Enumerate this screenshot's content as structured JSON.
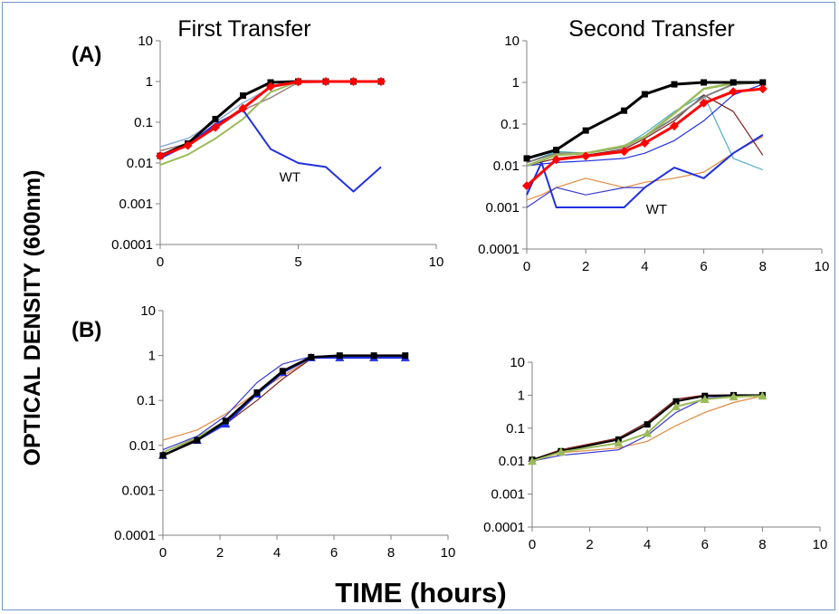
{
  "figure": {
    "y_axis_label": "OPTICAL DENSITY (600nm)",
    "x_axis_label": "TIME (hours)",
    "panel_labels": [
      "(A)",
      "(B)"
    ],
    "colors": {
      "frame_border": "#6f96c6"
    }
  },
  "chart_data": [
    {
      "id": "A-first",
      "type": "line",
      "title": "First Transfer",
      "xlabel": "",
      "ylabel": "",
      "xlim": [
        0,
        10
      ],
      "ylim": [
        0.0001,
        10
      ],
      "yscale": "log",
      "xticks": [
        "0",
        "5",
        "10"
      ],
      "yticks": [
        "0.0001",
        "0.001",
        "0.01",
        "0.1",
        "1",
        "10"
      ],
      "grid": false,
      "annotations": [
        {
          "text": "WT",
          "x": 4.7,
          "y": 0.0035
        }
      ],
      "series": [
        {
          "color": "#8fb0d8",
          "width": 1.5,
          "marker": "none",
          "x": [
            0,
            1,
            2,
            3,
            4,
            5,
            6,
            7,
            8
          ],
          "y": [
            0.025,
            0.04,
            0.1,
            0.3,
            0.7,
            1,
            1,
            1,
            1
          ]
        },
        {
          "color": "#9b8080",
          "width": 1.5,
          "marker": "none",
          "x": [
            0,
            1,
            2,
            3,
            4,
            5,
            6,
            7,
            8
          ],
          "y": [
            0.02,
            0.03,
            0.07,
            0.2,
            0.4,
            0.95,
            1,
            1,
            1
          ]
        },
        {
          "color": "#9bbb59",
          "width": 2,
          "marker": "none",
          "x": [
            0,
            1,
            2,
            3,
            4,
            5,
            6,
            7,
            8
          ],
          "y": [
            0.009,
            0.016,
            0.04,
            0.12,
            0.55,
            1,
            1,
            1,
            1
          ]
        },
        {
          "color": "#2030e0",
          "width": 2,
          "marker": "none",
          "x": [
            0,
            1,
            2,
            3,
            4,
            5,
            6,
            7,
            8
          ],
          "y": [
            0.013,
            0.028,
            0.09,
            0.2,
            0.022,
            0.01,
            0.008,
            0.002,
            0.008
          ]
        },
        {
          "color": "#000000",
          "width": 3,
          "marker": "square",
          "x": [
            0,
            1,
            2,
            3,
            4,
            5,
            6,
            7,
            8
          ],
          "y": [
            0.015,
            0.03,
            0.12,
            0.45,
            0.95,
            1,
            1,
            1,
            1
          ]
        },
        {
          "color": "#ff0000",
          "width": 3,
          "marker": "diamond",
          "x": [
            0,
            1,
            2,
            3,
            4,
            5,
            6,
            7,
            8
          ],
          "y": [
            0.015,
            0.027,
            0.075,
            0.22,
            0.75,
            0.98,
            1,
            1,
            1
          ]
        }
      ]
    },
    {
      "id": "A-second",
      "type": "line",
      "title": "Second Transfer",
      "xlabel": "",
      "ylabel": "",
      "xlim": [
        0,
        10
      ],
      "ylim": [
        0.0001,
        10
      ],
      "yscale": "log",
      "xticks": [
        "0",
        "2",
        "4",
        "6",
        "8",
        "10"
      ],
      "yticks": [
        "0.0001",
        "0.001",
        "0.01",
        "0.1",
        "1",
        "10"
      ],
      "grid": false,
      "annotations": [
        {
          "text": "WT",
          "x": 4.4,
          "y": 0.0007
        }
      ],
      "series": [
        {
          "color": "#e08a40",
          "width": 1.2,
          "marker": "none",
          "x": [
            0,
            0.5,
            1,
            2,
            3.3,
            4,
            5,
            6,
            7,
            8
          ],
          "y": [
            0.0015,
            0.002,
            0.003,
            0.005,
            0.003,
            0.004,
            0.005,
            0.007,
            0.02,
            0.05
          ]
        },
        {
          "color": "#3b3bd0",
          "width": 1.2,
          "marker": "none",
          "x": [
            0,
            1,
            2,
            3.3,
            4,
            5,
            6,
            7,
            8
          ],
          "y": [
            0.001,
            0.003,
            0.002,
            0.003,
            0.003,
            0.009,
            0.005,
            0.02,
            0.055
          ]
        },
        {
          "color": "#4bacc6",
          "width": 1.2,
          "marker": "none",
          "x": [
            0,
            1,
            2,
            3.3,
            4,
            5,
            6,
            7,
            8
          ],
          "y": [
            0.012,
            0.022,
            0.02,
            0.03,
            0.06,
            0.2,
            0.5,
            0.015,
            0.008
          ]
        },
        {
          "color": "#7f1f1f",
          "width": 1.2,
          "marker": "none",
          "x": [
            0,
            1,
            2,
            3.3,
            4,
            5,
            6,
            7,
            8
          ],
          "y": [
            0.01,
            0.015,
            0.018,
            0.025,
            0.045,
            0.12,
            0.5,
            0.2,
            0.018
          ]
        },
        {
          "color": "#2030e0",
          "width": 1.2,
          "marker": "none",
          "x": [
            0,
            1,
            2,
            3.3,
            4,
            5,
            6,
            7,
            8
          ],
          "y": [
            0.01,
            0.012,
            0.013,
            0.015,
            0.02,
            0.04,
            0.12,
            0.5,
            0.9
          ]
        },
        {
          "color": "#2030e0",
          "width": 2,
          "marker": "none",
          "x": [
            0,
            0.5,
            1,
            2,
            3.3,
            4,
            5,
            6,
            7,
            8
          ],
          "y": [
            0.002,
            0.012,
            0.001,
            0.001,
            0.001,
            0.003,
            0.009,
            0.005,
            0.02,
            0.055
          ]
        },
        {
          "color": "#808080",
          "width": 2,
          "marker": "none",
          "x": [
            0,
            1,
            2,
            3.3,
            4,
            5,
            6,
            7,
            8
          ],
          "y": [
            0.012,
            0.02,
            0.02,
            0.028,
            0.05,
            0.14,
            0.45,
            0.9,
            1
          ]
        },
        {
          "color": "#9bbb59",
          "width": 2.5,
          "marker": "none",
          "x": [
            0,
            1,
            2,
            3.3,
            4,
            5,
            6,
            7,
            8
          ],
          "y": [
            0.01,
            0.018,
            0.02,
            0.03,
            0.05,
            0.18,
            0.7,
            0.95,
            1
          ]
        },
        {
          "color": "#000000",
          "width": 3,
          "marker": "square",
          "x": [
            0,
            1,
            2,
            3.3,
            4,
            5,
            6,
            7,
            8
          ],
          "y": [
            0.015,
            0.024,
            0.07,
            0.21,
            0.52,
            0.9,
            1,
            1,
            1
          ]
        },
        {
          "color": "#ff0000",
          "width": 3,
          "marker": "diamond",
          "x": [
            0,
            1,
            2,
            3.3,
            4,
            5,
            6,
            7,
            8
          ],
          "y": [
            0.0033,
            0.014,
            0.017,
            0.022,
            0.035,
            0.09,
            0.32,
            0.6,
            0.7
          ]
        }
      ]
    },
    {
      "id": "B-first",
      "type": "line",
      "title": "",
      "xlabel": "",
      "ylabel": "",
      "xlim": [
        0,
        10
      ],
      "ylim": [
        0.0001,
        10
      ],
      "yscale": "log",
      "xticks": [
        "0",
        "2",
        "4",
        "6",
        "8",
        "10"
      ],
      "yticks": [
        "0.0001",
        "0.001",
        "0.01",
        "0.1",
        "1",
        "10"
      ],
      "grid": false,
      "annotations": [],
      "series": [
        {
          "color": "#e08a40",
          "width": 1.2,
          "marker": "none",
          "x": [
            0,
            1.2,
            2.2,
            3.3,
            4.2,
            5.2,
            6.2,
            7.4,
            8.5
          ],
          "y": [
            0.013,
            0.022,
            0.05,
            0.15,
            0.35,
            0.85,
            1,
            1,
            1
          ]
        },
        {
          "color": "#7f1f1f",
          "width": 1.2,
          "marker": "none",
          "x": [
            0,
            1.2,
            2.2,
            3.3,
            4.2,
            5.2,
            6.2,
            7.4,
            8.5
          ],
          "y": [
            0.007,
            0.014,
            0.03,
            0.1,
            0.3,
            0.85,
            1,
            1,
            1
          ]
        },
        {
          "color": "#3b3bd0",
          "width": 1.2,
          "marker": "none",
          "x": [
            0,
            1.2,
            2.2,
            3.3,
            4.2,
            5.2,
            6.2,
            7.4,
            8.5
          ],
          "y": [
            0.008,
            0.016,
            0.045,
            0.25,
            0.65,
            0.95,
            1,
            1,
            1
          ]
        },
        {
          "color": "#9bbb59",
          "width": 2,
          "marker": "none",
          "x": [
            0,
            1.2,
            2.2,
            3.3,
            4.2,
            5.2,
            6.2,
            7.4,
            8.5
          ],
          "y": [
            0.007,
            0.015,
            0.035,
            0.15,
            0.45,
            0.9,
            1,
            1,
            1
          ]
        },
        {
          "color": "#2030e0",
          "width": 2.5,
          "marker": "triangle",
          "x": [
            0,
            1.2,
            2.2,
            3.3,
            4.2,
            5.2,
            6.2,
            7.4,
            8.5
          ],
          "y": [
            0.006,
            0.013,
            0.03,
            0.14,
            0.42,
            0.9,
            0.9,
            0.9,
            0.9
          ]
        },
        {
          "color": "#000000",
          "width": 2.5,
          "marker": "square",
          "x": [
            0,
            1.2,
            2.2,
            3.3,
            4.2,
            5.2,
            6.2,
            7.4,
            8.5
          ],
          "y": [
            0.006,
            0.013,
            0.035,
            0.15,
            0.45,
            0.92,
            1,
            1,
            1
          ]
        }
      ]
    },
    {
      "id": "B-second",
      "type": "line",
      "title": "",
      "xlabel": "",
      "ylabel": "",
      "xlim": [
        0,
        10
      ],
      "ylim": [
        0.0001,
        10
      ],
      "yscale": "log",
      "xticks": [
        "0",
        "2",
        "4",
        "6",
        "8",
        "10"
      ],
      "yticks": [
        "0.0001",
        "0.001",
        "0.01",
        "0.1",
        "1",
        "10"
      ],
      "grid": false,
      "annotations": [],
      "series": [
        {
          "color": "#e08a40",
          "width": 1.2,
          "marker": "none",
          "x": [
            0,
            1,
            3,
            4,
            5,
            6,
            7,
            8
          ],
          "y": [
            0.01,
            0.018,
            0.025,
            0.04,
            0.12,
            0.3,
            0.6,
            0.95
          ]
        },
        {
          "color": "#3b3bd0",
          "width": 1.2,
          "marker": "none",
          "x": [
            0,
            1,
            3,
            4,
            5,
            6,
            7,
            8
          ],
          "y": [
            0.01,
            0.015,
            0.022,
            0.06,
            0.3,
            0.8,
            1,
            1
          ]
        },
        {
          "color": "#7f1f1f",
          "width": 1.5,
          "marker": "none",
          "x": [
            0,
            1,
            3,
            4,
            5,
            6,
            7,
            8
          ],
          "y": [
            0.011,
            0.022,
            0.05,
            0.15,
            0.75,
            1,
            1,
            1
          ]
        },
        {
          "color": "#000000",
          "width": 2,
          "marker": "square",
          "x": [
            0,
            1,
            3,
            4,
            5,
            6,
            7,
            8
          ],
          "y": [
            0.011,
            0.02,
            0.045,
            0.13,
            0.65,
            0.95,
            1,
            1
          ]
        },
        {
          "color": "#9bbb59",
          "width": 2,
          "marker": "triangle",
          "x": [
            0,
            1,
            3,
            4,
            5,
            6,
            7,
            8
          ],
          "y": [
            0.01,
            0.019,
            0.035,
            0.07,
            0.45,
            0.75,
            0.9,
            0.95
          ]
        }
      ]
    }
  ]
}
